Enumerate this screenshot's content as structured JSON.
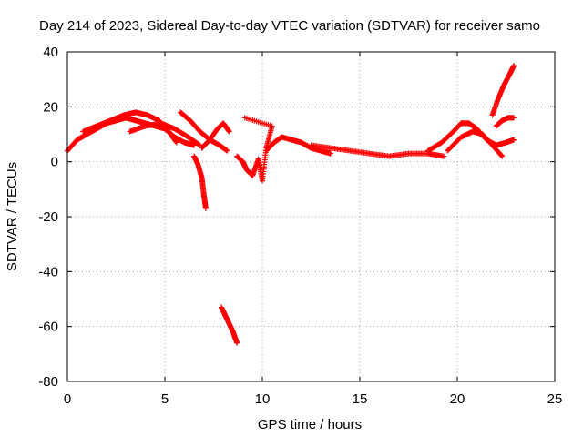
{
  "chart_data": {
    "type": "scatter",
    "title": "Day 214 of 2023, Sidereal Day-to-day VTEC variation (SDTVAR) for receiver samo",
    "xlabel": "GPS time / hours",
    "ylabel": "SDTVAR / TECUs",
    "xlim": [
      0,
      25
    ],
    "ylim": [
      -80,
      40
    ],
    "xticks": [
      0,
      5,
      10,
      15,
      20,
      25
    ],
    "yticks": [
      -80,
      -60,
      -40,
      -20,
      0,
      20,
      40
    ],
    "grid": true,
    "marker": "+",
    "color": "#ff0000",
    "series": [
      {
        "name": "main-arc-1",
        "x": [
          0,
          0.5,
          1,
          1.5,
          2,
          2.5,
          3,
          3.5,
          4,
          4.5,
          5,
          5.5,
          6,
          6.5
        ],
        "y": [
          4,
          8,
          10,
          12,
          14,
          15,
          16,
          15,
          14,
          13,
          12,
          9,
          7,
          6
        ]
      },
      {
        "name": "main-arc-2",
        "x": [
          0.8,
          1.5,
          2.2,
          2.9,
          3.5,
          4.1,
          4.7,
          5.2,
          5.6
        ],
        "y": [
          11,
          13,
          15,
          17,
          18,
          17,
          15,
          11,
          7
        ]
      },
      {
        "name": "main-arc-3",
        "x": [
          3.2,
          4,
          4.8,
          5.5,
          6.2,
          6.8
        ],
        "y": [
          11,
          13,
          14,
          12,
          9,
          6
        ]
      },
      {
        "name": "arc-6h",
        "x": [
          5.8,
          6.3,
          6.8,
          7.3,
          7.8,
          8.2
        ],
        "y": [
          18,
          15,
          11,
          8,
          6,
          4
        ]
      },
      {
        "name": "arc-7h",
        "x": [
          6.9,
          7.3,
          7.7,
          8.0,
          8.3
        ],
        "y": [
          5,
          8,
          12,
          14,
          11
        ]
      },
      {
        "name": "dip-7h",
        "x": [
          6.5,
          6.7,
          6.9,
          7.0,
          7.1
        ],
        "y": [
          2,
          -1,
          -6,
          -12,
          -17
        ]
      },
      {
        "name": "drop-8h",
        "x": [
          7.9,
          8.1,
          8.3,
          8.5,
          8.7
        ],
        "y": [
          -53,
          -56,
          -59,
          -62,
          -66
        ]
      },
      {
        "name": "scatter-9h",
        "x": [
          8.7,
          9.0,
          9.2,
          9.5,
          9.8,
          10.0,
          10.2,
          10.5,
          9.1
        ],
        "y": [
          2,
          0,
          -3,
          -5,
          1,
          -7,
          5,
          13,
          16
        ]
      },
      {
        "name": "arc-11h",
        "x": [
          10.2,
          10.6,
          11.0,
          11.5,
          12.0,
          12.5,
          13.0,
          13.5
        ],
        "y": [
          4,
          7,
          9,
          8,
          7,
          5,
          4,
          3
        ]
      },
      {
        "name": "flat-13-19h",
        "x": [
          12.5,
          13.5,
          14.5,
          15.5,
          16.5,
          17.5,
          18.5,
          19.3
        ],
        "y": [
          6,
          5,
          4,
          3,
          2,
          3,
          3,
          2
        ]
      },
      {
        "name": "arc-20h",
        "x": [
          18.5,
          19.2,
          19.8,
          20.2,
          20.6,
          21.0,
          21.5,
          22.0,
          22.5,
          22.9
        ],
        "y": [
          4,
          7,
          11,
          14,
          14,
          12,
          8,
          6,
          7,
          8
        ]
      },
      {
        "name": "arc-21h",
        "x": [
          19.5,
          20.2,
          20.8,
          21.3,
          21.8,
          22.3
        ],
        "y": [
          4,
          9,
          11,
          10,
          6,
          2
        ]
      },
      {
        "name": "rise-22h",
        "x": [
          21.8,
          22.1,
          22.4,
          22.7,
          22.9
        ],
        "y": [
          17,
          23,
          28,
          32,
          35
        ]
      },
      {
        "name": "end-22h",
        "x": [
          22.0,
          22.3,
          22.6,
          22.9
        ],
        "y": [
          13,
          15,
          16,
          16
        ]
      }
    ]
  }
}
